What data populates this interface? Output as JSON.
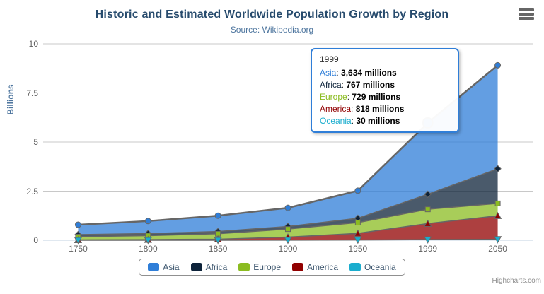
{
  "chart_data": {
    "type": "area",
    "stacking": "normal",
    "title": "Historic and Estimated Worldwide Population Growth by Region",
    "subtitle": "Source: Wikipedia.org",
    "categories": [
      "1750",
      "1800",
      "1850",
      "1900",
      "1950",
      "1999",
      "2050"
    ],
    "unit": "millions",
    "ylabel": "Billions",
    "ylim": [
      0,
      10
    ],
    "yticks": [
      0,
      2.5,
      5,
      7.5,
      10
    ],
    "grid": true,
    "legend_position": "bottom",
    "series": [
      {
        "name": "Asia",
        "color": "#2f7ed8",
        "marker": "circle",
        "values": [
          502,
          635,
          809,
          947,
          1402,
          3634,
          5268
        ]
      },
      {
        "name": "Africa",
        "color": "#0d233a",
        "marker": "diamond",
        "values": [
          106,
          107,
          111,
          133,
          221,
          767,
          1766
        ]
      },
      {
        "name": "Europe",
        "color": "#8bbc21",
        "marker": "square",
        "values": [
          163,
          203,
          276,
          408,
          547,
          729,
          628
        ]
      },
      {
        "name": "America",
        "color": "#910000",
        "marker": "triangle",
        "values": [
          18,
          31,
          54,
          156,
          339,
          818,
          1201
        ]
      },
      {
        "name": "Oceania",
        "color": "#1aadce",
        "marker": "triangle-down",
        "values": [
          2,
          2,
          2,
          6,
          13,
          30,
          46
        ]
      }
    ],
    "hover": {
      "series": "Asia",
      "category_index": 5
    }
  },
  "tooltip": {
    "category": "1999",
    "suffix": "millions",
    "rows": [
      {
        "name": "Asia",
        "color": "#2f7ed8",
        "value": "3,634"
      },
      {
        "name": "Africa",
        "color": "#0d233a",
        "value": "767"
      },
      {
        "name": "Europe",
        "color": "#8bbc21",
        "value": "729"
      },
      {
        "name": "America",
        "color": "#910000",
        "value": "818"
      },
      {
        "name": "Oceania",
        "color": "#1aadce",
        "value": "30"
      }
    ]
  },
  "credits": {
    "label": "Highcharts.com"
  },
  "colors": {
    "title": "#274b6d",
    "subtitle": "#4d759e",
    "axis_labels": "#606060",
    "axis_line": "#C0D0E0",
    "grid_line": "#C8C8C8",
    "series_outline": "#666666",
    "legend_text": "#3E576F",
    "legend_border": "#909090",
    "tooltip_border": "#2f7ed8"
  }
}
